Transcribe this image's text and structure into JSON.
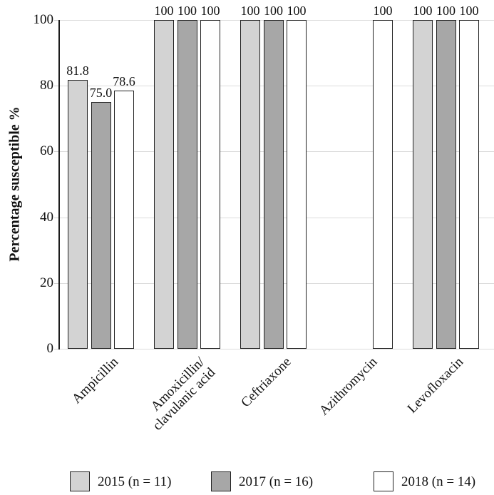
{
  "figure": {
    "background": "#ffffff",
    "axis_color": "#1c1c1c",
    "gridline_color": "#dcdcdc",
    "bar_border_color": "#222222",
    "text_color": "#111111"
  },
  "chart_data": {
    "type": "bar",
    "title": "",
    "xlabel": "",
    "ylabel": "Percentage susceptible %",
    "ylim": [
      0,
      100
    ],
    "yticks": [
      0,
      20,
      40,
      60,
      80,
      100
    ],
    "grid": true,
    "legend_position": "bottom",
    "categories": [
      "Ampicillin",
      "Amoxicillin/\nclavulanic acid",
      "Ceftriaxone",
      "Azithromycin",
      "Levofloxacin"
    ],
    "series": [
      {
        "name": "2015 (n = 11)",
        "color": "#d3d3d3",
        "values": [
          81.8,
          100,
          100,
          null,
          100
        ],
        "labels": [
          "81.8",
          "100",
          "100",
          null,
          "100"
        ]
      },
      {
        "name": "2017 (n = 16)",
        "color": "#a7a7a7",
        "values": [
          75.0,
          100,
          100,
          null,
          100
        ],
        "labels": [
          "75.0",
          "100",
          "100",
          null,
          "100"
        ]
      },
      {
        "name": "2018 (n = 14)",
        "color": "#ffffff",
        "values": [
          78.6,
          100,
          100,
          100,
          100
        ],
        "labels": [
          "78.6",
          "100",
          "100",
          "100",
          "100"
        ]
      }
    ]
  }
}
